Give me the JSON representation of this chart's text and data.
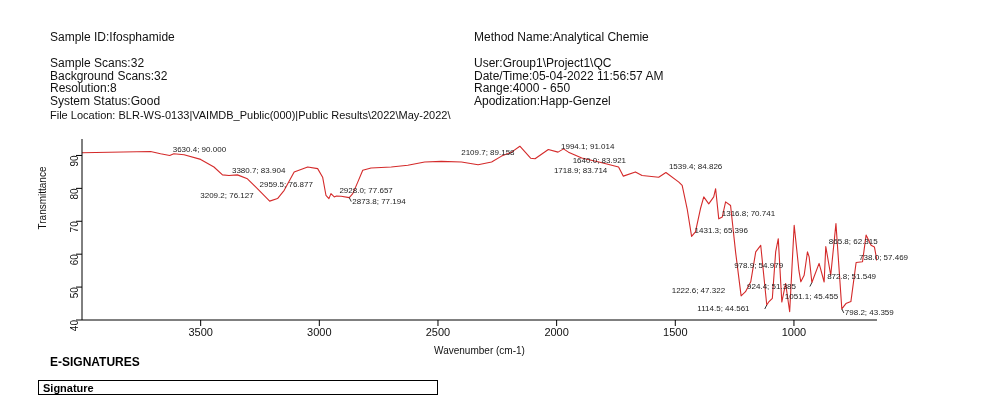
{
  "chart_data": {
    "type": "line",
    "xlabel": "Wavenumber (cm-1)",
    "ylabel": "Transmittance",
    "xlim": [
      4000,
      650
    ],
    "xticks": [
      3500,
      3000,
      2500,
      2000,
      1500,
      1000
    ],
    "ylim": [
      40,
      95
    ],
    "yticks": [
      40,
      50,
      60,
      70,
      80,
      90
    ],
    "grid": false,
    "legend": false,
    "marker": "none",
    "line_style": "solid",
    "series": [
      {
        "color": "#d42a2a",
        "x": [
          4000,
          3711,
          3669,
          3630.4,
          3613,
          3570,
          3500,
          3444,
          3408,
          3380.7,
          3345,
          3303,
          3261,
          3209.2,
          3176,
          3148,
          3106,
          3049,
          3007,
          2986,
          2972,
          2959.5,
          2951,
          2937,
          2928.0,
          2908,
          2873.8,
          2859,
          2838,
          2817,
          2782,
          2697,
          2627,
          2556,
          2486,
          2401,
          2331,
          2274,
          2232,
          2190,
          2155,
          2109.7,
          2091,
          2035,
          1994.1,
          1971,
          1950,
          1894,
          1809,
          1739,
          1718.9,
          1668,
          1640.0,
          1570,
          1539.4,
          1485,
          1471,
          1450,
          1431.3,
          1415,
          1394,
          1380,
          1359,
          1338,
          1330,
          1316.8,
          1302,
          1288,
          1267,
          1246,
          1222.6,
          1204,
          1182,
          1161,
          1140,
          1114.5,
          1105,
          1091,
          1077,
          1066,
          1051.1,
          1035,
          1018,
          999,
          978.9,
          971,
          957,
          943,
          936,
          924.4,
          894,
          872.8,
          865.8,
          845,
          823,
          798.2,
          781,
          760,
          738.0,
          711,
          696,
          675,
          661,
          650
        ],
        "values": [
          90.8,
          91.2,
          90.5,
          90.0,
          90.5,
          90.2,
          88.8,
          86.5,
          84.1,
          83.904,
          84.1,
          82.9,
          79.9,
          76.127,
          76.9,
          79.4,
          85.0,
          86.5,
          86.0,
          83.4,
          77.9,
          76.877,
          78.4,
          77.4,
          77.657,
          77.6,
          77.194,
          78.4,
          81.9,
          85.5,
          86.2,
          86.5,
          87.0,
          88.0,
          88.2,
          88.0,
          87.2,
          88.0,
          89.8,
          91.0,
          92.8,
          89.158,
          89.0,
          91.8,
          91.014,
          92.0,
          91.0,
          89.2,
          87.8,
          86.5,
          83.714,
          85.0,
          83.921,
          83.4,
          84.826,
          81.9,
          80.9,
          73.8,
          65.396,
          66.8,
          73.8,
          77.4,
          75.3,
          77.4,
          79.9,
          70.741,
          71.3,
          75.9,
          74.8,
          60.7,
          47.322,
          48.6,
          51.6,
          60.7,
          62.7,
          44.561,
          45.6,
          46.6,
          60.7,
          64.7,
          45.455,
          51.1,
          42.5,
          68.8,
          54.979,
          51.6,
          53.6,
          60.7,
          59.2,
          51.385,
          57.2,
          51.549,
          62.315,
          53.6,
          69.3,
          43.359,
          45.0,
          45.6,
          57.469,
          57.7,
          65.8,
          62.7,
          62.2,
          58.0
        ]
      }
    ],
    "annotations": [
      "Sample ID:Ifosphamide",
      "Method Name:Analytical Chemie",
      "Sample Scans:32",
      "User:Group1\\Project1\\QC",
      "Background Scans:32",
      "Date/Time:05-04-2022 11:56:57 AM",
      "Resolution:8",
      "Range:4000 - 650",
      "System Status:Good",
      "Apodization:Happ-Genzel",
      "File Location: BLR-WS-0133|VAIMDB_Public(000)|Public Results\\2022\\May-2022\\",
      "E-SIGNATURES",
      "Signature",
      {
        "text": "3630.4; 90.000",
        "x": 3630.4,
        "y": 90.0
      },
      {
        "text": "3380.7; 83.904",
        "x": 3380.7,
        "y": 83.904
      },
      {
        "text": "3209.2; 76.127",
        "x": 3209.2,
        "y": 76.127
      },
      {
        "text": "2928.0; 77.657",
        "x": 2928.0,
        "y": 77.657
      },
      {
        "text": "2873.8; 77.194",
        "x": 2873.8,
        "y": 77.194
      },
      {
        "text": "2959.5; 76.877",
        "x": 2959.5,
        "y": 76.877
      },
      {
        "text": "1994.1; 91.014",
        "x": 1994.1,
        "y": 91.014
      },
      {
        "text": "2109.7; 89.158",
        "x": 2109.7,
        "y": 89.158
      },
      {
        "text": "1718.9; 83.714",
        "x": 1718.9,
        "y": 83.714
      },
      {
        "text": "1539.4; 84.826",
        "x": 1539.4,
        "y": 84.826
      },
      {
        "text": "1640.0; 83.921",
        "x": 1640.0,
        "y": 83.921
      },
      {
        "text": "1316.8; 70.741",
        "x": 1316.8,
        "y": 70.741
      },
      {
        "text": "1431.3; 65.396",
        "x": 1431.3,
        "y": 65.396
      },
      {
        "text": "865.8; 62.315",
        "x": 865.8,
        "y": 62.315
      },
      {
        "text": "738.0; 57.469",
        "x": 738.0,
        "y": 57.469
      },
      {
        "text": "978.9; 54.979",
        "x": 978.9,
        "y": 54.979
      },
      {
        "text": "924.4; 51.385",
        "x": 924.4,
        "y": 51.385
      },
      {
        "text": "872.8; 51.549",
        "x": 872.8,
        "y": 51.549
      },
      {
        "text": "1222.6; 47.322",
        "x": 1222.6,
        "y": 47.322
      },
      {
        "text": "1114.5; 44.561",
        "x": 1114.5,
        "y": 44.561
      },
      {
        "text": "1051.1; 45.455",
        "x": 1051.1,
        "y": 45.455
      },
      {
        "text": "798.2; 43.359",
        "x": 798.2,
        "y": 43.359
      }
    ]
  }
}
